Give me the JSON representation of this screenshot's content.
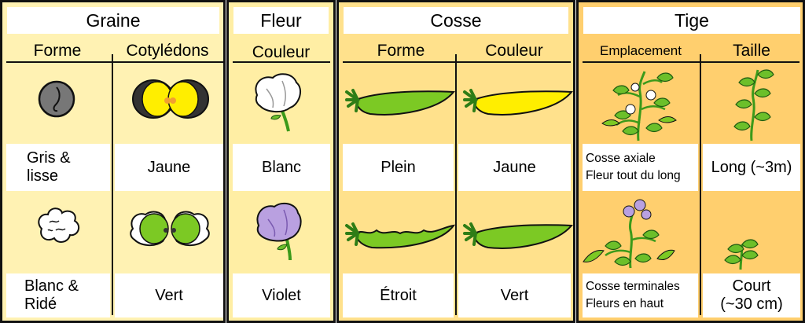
{
  "colors": {
    "seed_bg": "#fff2b3",
    "flower_bg": "#ffeea4",
    "pod_bg": "#ffe18c",
    "stem_bg": "#ffcf6e",
    "yellow": "#ffee00",
    "green": "#7cc924",
    "violet": "#b9a0e0"
  },
  "graine": {
    "title": "Graine",
    "col_forme": "Forme",
    "col_cotyledons": "Cotylédons",
    "r1_forme": "Gris & lisse",
    "r1_cot": "Jaune",
    "r2_forme": "Blanc & Ridé",
    "r2_cot": "Vert"
  },
  "fleur": {
    "title": "Fleur",
    "col_couleur": "Couleur",
    "r1": "Blanc",
    "r2": "Violet"
  },
  "cosse": {
    "title": "Cosse",
    "col_forme": "Forme",
    "col_couleur": "Couleur",
    "r1_forme": "Plein",
    "r1_couleur": "Jaune",
    "r2_forme": "Étroit",
    "r2_couleur": "Vert"
  },
  "tige": {
    "title": "Tige",
    "col_emplacement": "Emplacement",
    "col_taille": "Taille",
    "r1_empl_a": "Cosse axiale",
    "r1_empl_b": "Fleur tout du long",
    "r1_taille": "Long (~3m)",
    "r2_empl_a": "Cosse terminales",
    "r2_empl_b": "Fleurs en haut",
    "r2_taille_a": "Court",
    "r2_taille_b": "(~30 cm)"
  },
  "icons": [
    "grey-pea-icon",
    "yellow-cotyledons-icon",
    "white-pea-icon",
    "green-cotyledons-icon",
    "white-flower-icon",
    "violet-flower-icon",
    "full-pod-icon",
    "yellow-pod-icon",
    "narrow-pod-icon",
    "green-pod-icon",
    "tall-plant-axial-icon",
    "tall-plant-icon",
    "short-plant-terminal-icon",
    "short-plant-icon"
  ]
}
